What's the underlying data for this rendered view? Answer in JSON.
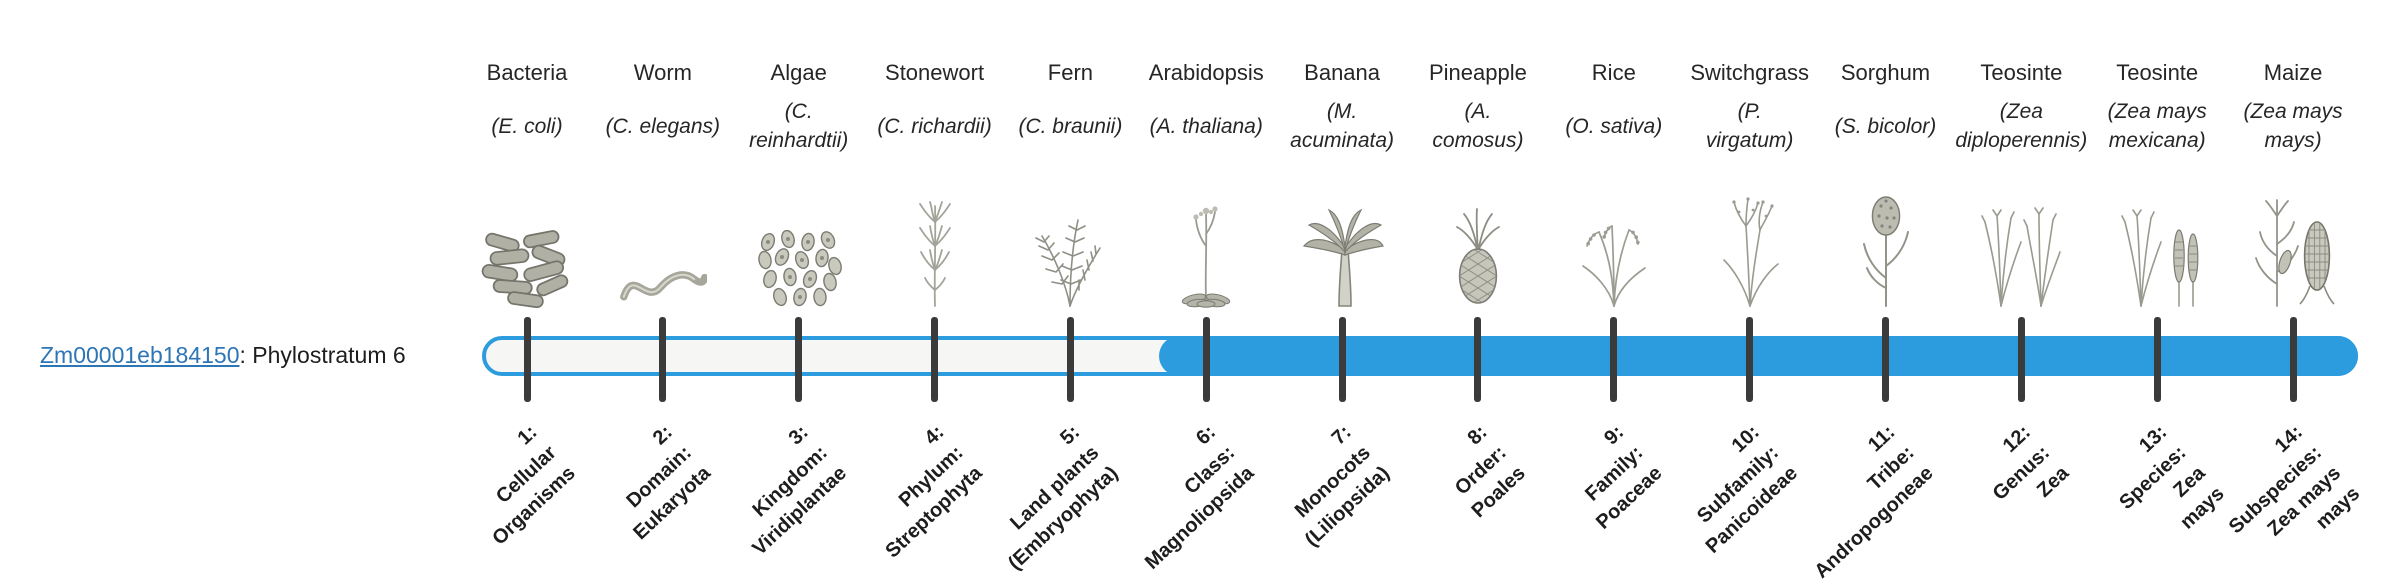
{
  "gene": {
    "id": "Zm00001eb184150",
    "suffix": ": Phylostratum 6",
    "phylostratum": 6
  },
  "colors": {
    "accent_blue": "#2D9CDE",
    "track_fill": "#f6f6f5",
    "tick": "#3b3b3b",
    "link": "#2E75B6",
    "text": "#262626"
  },
  "stages": [
    {
      "index": 1,
      "organism": "Bacteria",
      "scientific": [
        "(E. coli)"
      ],
      "icon": "bacteria-icon",
      "rank_label": [
        "1:",
        "Cellular",
        "Organisms"
      ]
    },
    {
      "index": 2,
      "organism": "Worm",
      "scientific": [
        "(C. elegans)"
      ],
      "icon": "worm-icon",
      "rank_label": [
        "2:",
        "Domain:",
        "Eukaryota"
      ]
    },
    {
      "index": 3,
      "organism": "Algae",
      "scientific": [
        "(C.",
        "reinhardtii)"
      ],
      "icon": "algae-icon",
      "rank_label": [
        "3:",
        "Kingdom:",
        "Viridiplantae"
      ]
    },
    {
      "index": 4,
      "organism": "Stonewort",
      "scientific": [
        "(C. richardii)"
      ],
      "icon": "stonewort-icon",
      "rank_label": [
        "4:",
        "Phylum:",
        "Streptophyta"
      ]
    },
    {
      "index": 5,
      "organism": "Fern",
      "scientific": [
        "(C. braunii)"
      ],
      "icon": "fern-icon",
      "rank_label": [
        "5:",
        "Land plants",
        "(Embryophyta)"
      ]
    },
    {
      "index": 6,
      "organism": "Arabidopsis",
      "scientific": [
        "(A. thaliana)"
      ],
      "icon": "arabidopsis-icon",
      "rank_label": [
        "6:",
        "Class:",
        "Magnoliopsida"
      ]
    },
    {
      "index": 7,
      "organism": "Banana",
      "scientific": [
        "(M.",
        "acuminata)"
      ],
      "icon": "banana-icon",
      "rank_label": [
        "7:",
        "Monocots",
        "(Liliopsida)"
      ]
    },
    {
      "index": 8,
      "organism": "Pineapple",
      "scientific": [
        "(A.",
        "comosus)"
      ],
      "icon": "pineapple-icon",
      "rank_label": [
        "8:",
        "Order:",
        "Poales"
      ]
    },
    {
      "index": 9,
      "organism": "Rice",
      "scientific": [
        "(O. sativa)"
      ],
      "icon": "rice-icon",
      "rank_label": [
        "9:",
        "Family:",
        "Poaceae"
      ]
    },
    {
      "index": 10,
      "organism": "Switchgrass",
      "scientific": [
        "(P.",
        "virgatum)"
      ],
      "icon": "switchgrass-icon",
      "rank_label": [
        "10:",
        "Subfamily:",
        "Panicoideae"
      ]
    },
    {
      "index": 11,
      "organism": "Sorghum",
      "scientific": [
        "(S. bicolor)"
      ],
      "icon": "sorghum-icon",
      "rank_label": [
        "11:",
        "Tribe:",
        "Andropogoneae"
      ]
    },
    {
      "index": 12,
      "organism": "Teosinte",
      "scientific": [
        "(Zea",
        "diploperennis)"
      ],
      "icon": "teosinte-diploperennis-icon",
      "rank_label": [
        "12:",
        "Genus:",
        "Zea"
      ]
    },
    {
      "index": 13,
      "organism": "Teosinte",
      "scientific": [
        "(Zea mays",
        "mexicana)"
      ],
      "icon": "teosinte-mexicana-icon",
      "rank_label": [
        "13:",
        "Species:",
        "Zea",
        "mays"
      ]
    },
    {
      "index": 14,
      "organism": "Maize",
      "scientific": [
        "(Zea mays",
        "mays)"
      ],
      "icon": "maize-icon",
      "rank_label": [
        "14:",
        "Subspecies:",
        "Zea mays",
        "mays"
      ]
    }
  ]
}
